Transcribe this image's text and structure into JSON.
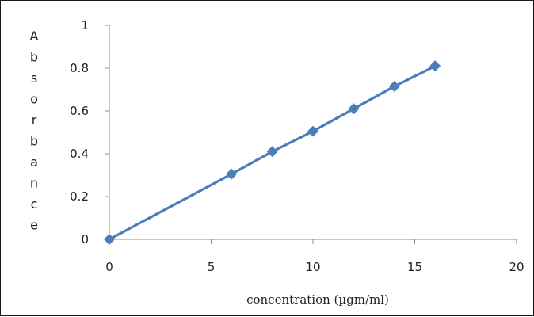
{
  "chart_data": {
    "type": "line",
    "title": "",
    "xlabel": "concentration (µgm/ml)",
    "ylabel": "Absorbance",
    "xlim": [
      0,
      20
    ],
    "ylim": [
      0,
      1
    ],
    "x_ticks": [
      0,
      5,
      10,
      15,
      20
    ],
    "y_ticks": [
      0,
      0.2,
      0.4,
      0.6,
      0.8,
      1
    ],
    "grid": false,
    "legend": "none",
    "series": [
      {
        "color": "#4a7ebb",
        "marker": "diamond",
        "x": [
          0,
          6,
          8,
          10,
          12,
          14,
          16
        ],
        "y": [
          0,
          0.305,
          0.41,
          0.505,
          0.61,
          0.715,
          0.81
        ]
      }
    ]
  }
}
